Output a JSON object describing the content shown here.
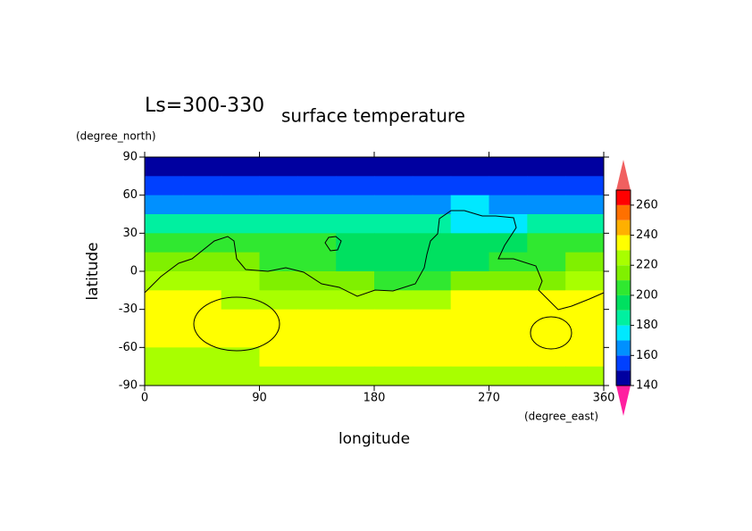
{
  "chart_data": {
    "type": "contour",
    "title": "surface temperature",
    "subtitle": "Ls=300-330",
    "x_label": "longitude",
    "y_label": "latitude",
    "x_unit": "(degree_east)",
    "y_unit": "(degree_north)",
    "xlim": [
      0,
      360
    ],
    "ylim": [
      -90,
      90
    ],
    "xticks": [
      0,
      90,
      180,
      270,
      360
    ],
    "yticks": [
      -90,
      -60,
      -30,
      0,
      30,
      60,
      90
    ],
    "x": [
      15,
      45,
      75,
      105,
      135,
      165,
      195,
      225,
      255,
      285,
      315,
      345
    ],
    "y": [
      82.5,
      67.5,
      52.5,
      37.5,
      22.5,
      7.5,
      -7.5,
      -22.5,
      -37.5,
      -52.5,
      -67.5,
      -82.5
    ],
    "z": [
      [
        145,
        145,
        145,
        145,
        145,
        145,
        145,
        145,
        145,
        145,
        145,
        145
      ],
      [
        155,
        155,
        155,
        155,
        155,
        155,
        155,
        155,
        155,
        155,
        155,
        155
      ],
      [
        165,
        165,
        165,
        165,
        165,
        165,
        165,
        165,
        175,
        165,
        165,
        165
      ],
      [
        185,
        185,
        185,
        185,
        185,
        185,
        185,
        185,
        175,
        175,
        185,
        185
      ],
      [
        205,
        205,
        205,
        200,
        200,
        195,
        190,
        190,
        190,
        195,
        200,
        205
      ],
      [
        215,
        215,
        210,
        200,
        200,
        198,
        196,
        195,
        195,
        200,
        205,
        215
      ],
      [
        220,
        220,
        220,
        215,
        210,
        210,
        205,
        205,
        210,
        210,
        210,
        220
      ],
      [
        230,
        230,
        225,
        225,
        225,
        225,
        225,
        225,
        232,
        232,
        232,
        232
      ],
      [
        235,
        235,
        235,
        235,
        235,
        235,
        235,
        235,
        235,
        235,
        235,
        235
      ],
      [
        235,
        235,
        235,
        235,
        235,
        235,
        235,
        235,
        235,
        235,
        235,
        235
      ],
      [
        225,
        225,
        225,
        232,
        232,
        232,
        232,
        232,
        232,
        232,
        232,
        232
      ],
      [
        225,
        225,
        225,
        225,
        225,
        225,
        225,
        225,
        225,
        225,
        225,
        225
      ]
    ],
    "levels": [
      140,
      150,
      160,
      170,
      180,
      190,
      200,
      210,
      220,
      230,
      240,
      250,
      260,
      270
    ],
    "colors": [
      "#0000a0",
      "#0040ff",
      "#0090ff",
      "#00e8ff",
      "#00f0a0",
      "#00e060",
      "#30e830",
      "#80f000",
      "#a8ff00",
      "#ffff00",
      "#ffb000",
      "#ff7000",
      "#ff0000"
    ],
    "under_color": "#ff20a0",
    "over_color": "#f06060",
    "cbar_ticks": [
      140,
      160,
      180,
      200,
      220,
      240,
      260
    ]
  }
}
